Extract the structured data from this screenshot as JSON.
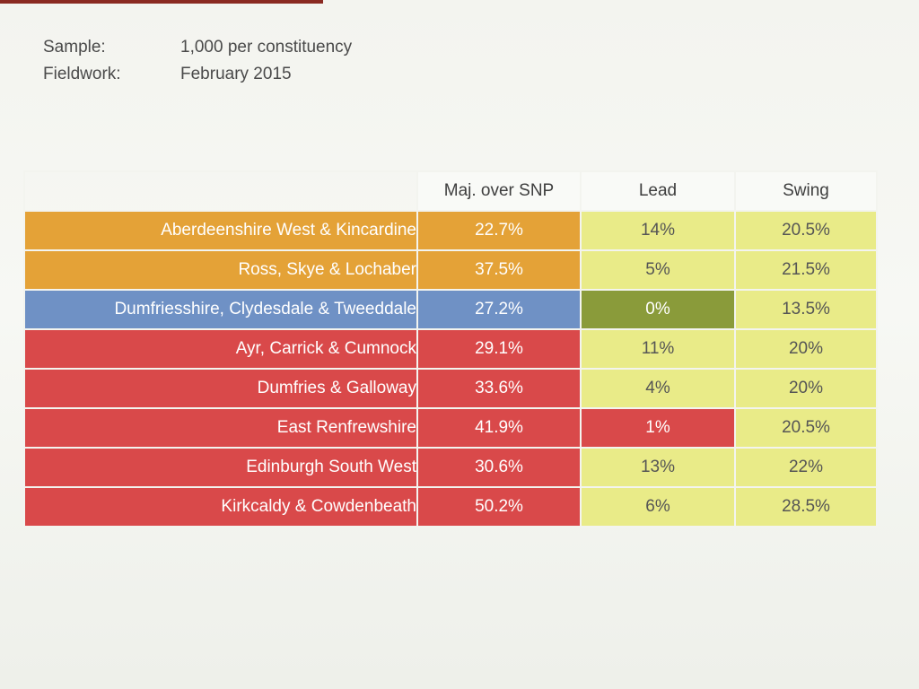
{
  "meta": {
    "sample_label": "Sample:",
    "sample_value": "1,000 per constituency",
    "fieldwork_label": "Fieldwork:",
    "fieldwork_value": "February 2015"
  },
  "table": {
    "headers": {
      "maj": "Maj. over SNP",
      "lead": "Lead",
      "swing": "Swing"
    },
    "colors": {
      "orange": "#e4a237",
      "blue": "#6f91c5",
      "red": "#d9494a",
      "yellow": "#e9eb88",
      "olive": "#8a9b3a"
    },
    "rows": [
      {
        "name": "Aberdeenshire West & Kincardine",
        "maj": "22.7%",
        "lead": "14%",
        "swing": "20.5%"
      },
      {
        "name": "Ross, Skye & Lochaber",
        "maj": "37.5%",
        "lead": "5%",
        "swing": "21.5%"
      },
      {
        "name": "Dumfriesshire, Clydesdale & Tweeddale",
        "maj": "27.2%",
        "lead": "0%",
        "swing": "13.5%"
      },
      {
        "name": "Ayr, Carrick & Cumnock",
        "maj": "29.1%",
        "lead": "11%",
        "swing": "20%"
      },
      {
        "name": "Dumfries & Galloway",
        "maj": "33.6%",
        "lead": "4%",
        "swing": "20%"
      },
      {
        "name": "East Renfrewshire",
        "maj": "41.9%",
        "lead": "1%",
        "swing": "20.5%"
      },
      {
        "name": "Edinburgh South West",
        "maj": "30.6%",
        "lead": "13%",
        "swing": "22%"
      },
      {
        "name": "Kirkcaldy & Cowdenbeath",
        "maj": "50.2%",
        "lead": "6%",
        "swing": "28.5%"
      }
    ]
  }
}
